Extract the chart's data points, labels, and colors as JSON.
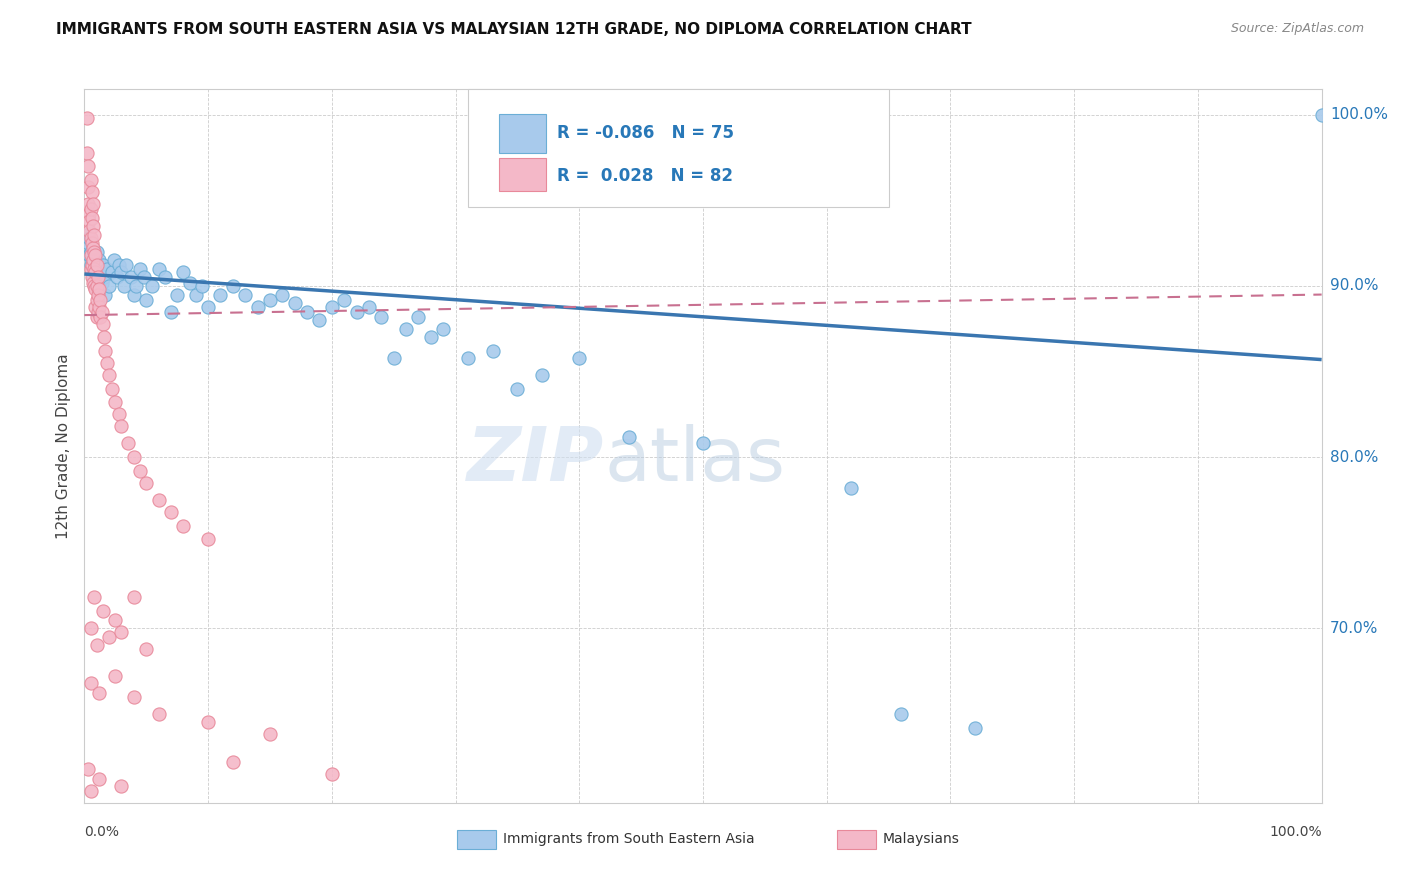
{
  "title": "IMMIGRANTS FROM SOUTH EASTERN ASIA VS MALAYSIAN 12TH GRADE, NO DIPLOMA CORRELATION CHART",
  "source": "Source: ZipAtlas.com",
  "ylabel": "12th Grade, No Diploma",
  "legend_label1": "Immigrants from South Eastern Asia",
  "legend_label2": "Malaysians",
  "r1": "-0.086",
  "n1": "75",
  "r2": "0.028",
  "n2": "82",
  "watermark_zip": "ZIP",
  "watermark_atlas": "atlas",
  "blue_color": "#a8caec",
  "blue_edge": "#6baed6",
  "pink_color": "#f4b8c8",
  "pink_edge": "#e8899a",
  "blue_line_color": "#3a76b0",
  "pink_line_color": "#c87090",
  "blue_scatter": [
    [
      0.002,
      0.93
    ],
    [
      0.003,
      0.925
    ],
    [
      0.004,
      0.928
    ],
    [
      0.004,
      0.918
    ],
    [
      0.005,
      0.92
    ],
    [
      0.005,
      0.912
    ],
    [
      0.006,
      0.915
    ],
    [
      0.007,
      0.91
    ],
    [
      0.007,
      0.905
    ],
    [
      0.008,
      0.918
    ],
    [
      0.008,
      0.908
    ],
    [
      0.009,
      0.912
    ],
    [
      0.01,
      0.92
    ],
    [
      0.01,
      0.905
    ],
    [
      0.011,
      0.91
    ],
    [
      0.012,
      0.915
    ],
    [
      0.013,
      0.908
    ],
    [
      0.014,
      0.902
    ],
    [
      0.015,
      0.912
    ],
    [
      0.016,
      0.905
    ],
    [
      0.017,
      0.895
    ],
    [
      0.018,
      0.91
    ],
    [
      0.02,
      0.9
    ],
    [
      0.022,
      0.908
    ],
    [
      0.024,
      0.915
    ],
    [
      0.026,
      0.905
    ],
    [
      0.028,
      0.912
    ],
    [
      0.03,
      0.908
    ],
    [
      0.032,
      0.9
    ],
    [
      0.034,
      0.912
    ],
    [
      0.038,
      0.905
    ],
    [
      0.04,
      0.895
    ],
    [
      0.042,
      0.9
    ],
    [
      0.045,
      0.91
    ],
    [
      0.048,
      0.905
    ],
    [
      0.05,
      0.892
    ],
    [
      0.055,
      0.9
    ],
    [
      0.06,
      0.91
    ],
    [
      0.065,
      0.905
    ],
    [
      0.07,
      0.885
    ],
    [
      0.075,
      0.895
    ],
    [
      0.08,
      0.908
    ],
    [
      0.085,
      0.902
    ],
    [
      0.09,
      0.895
    ],
    [
      0.095,
      0.9
    ],
    [
      0.1,
      0.888
    ],
    [
      0.11,
      0.895
    ],
    [
      0.12,
      0.9
    ],
    [
      0.13,
      0.895
    ],
    [
      0.14,
      0.888
    ],
    [
      0.15,
      0.892
    ],
    [
      0.16,
      0.895
    ],
    [
      0.17,
      0.89
    ],
    [
      0.18,
      0.885
    ],
    [
      0.19,
      0.88
    ],
    [
      0.2,
      0.888
    ],
    [
      0.21,
      0.892
    ],
    [
      0.22,
      0.885
    ],
    [
      0.23,
      0.888
    ],
    [
      0.24,
      0.882
    ],
    [
      0.25,
      0.858
    ],
    [
      0.26,
      0.875
    ],
    [
      0.27,
      0.882
    ],
    [
      0.28,
      0.87
    ],
    [
      0.29,
      0.875
    ],
    [
      0.31,
      0.858
    ],
    [
      0.33,
      0.862
    ],
    [
      0.35,
      0.84
    ],
    [
      0.37,
      0.848
    ],
    [
      0.4,
      0.858
    ],
    [
      0.44,
      0.812
    ],
    [
      0.5,
      0.808
    ],
    [
      0.62,
      0.782
    ],
    [
      0.66,
      0.65
    ],
    [
      0.72,
      0.642
    ],
    [
      1.0,
      1.0
    ]
  ],
  "pink_scatter": [
    [
      0.002,
      0.998
    ],
    [
      0.002,
      0.978
    ],
    [
      0.003,
      0.97
    ],
    [
      0.003,
      0.958
    ],
    [
      0.003,
      0.948
    ],
    [
      0.004,
      0.942
    ],
    [
      0.004,
      0.938
    ],
    [
      0.004,
      0.932
    ],
    [
      0.005,
      0.962
    ],
    [
      0.005,
      0.945
    ],
    [
      0.005,
      0.928
    ],
    [
      0.005,
      0.918
    ],
    [
      0.005,
      0.91
    ],
    [
      0.006,
      0.955
    ],
    [
      0.006,
      0.94
    ],
    [
      0.006,
      0.925
    ],
    [
      0.006,
      0.912
    ],
    [
      0.006,
      0.905
    ],
    [
      0.007,
      0.948
    ],
    [
      0.007,
      0.935
    ],
    [
      0.007,
      0.922
    ],
    [
      0.007,
      0.915
    ],
    [
      0.007,
      0.902
    ],
    [
      0.008,
      0.93
    ],
    [
      0.008,
      0.92
    ],
    [
      0.008,
      0.91
    ],
    [
      0.008,
      0.9
    ],
    [
      0.009,
      0.918
    ],
    [
      0.009,
      0.908
    ],
    [
      0.009,
      0.898
    ],
    [
      0.009,
      0.888
    ],
    [
      0.01,
      0.912
    ],
    [
      0.01,
      0.9
    ],
    [
      0.01,
      0.892
    ],
    [
      0.01,
      0.882
    ],
    [
      0.011,
      0.905
    ],
    [
      0.011,
      0.895
    ],
    [
      0.011,
      0.885
    ],
    [
      0.012,
      0.898
    ],
    [
      0.012,
      0.888
    ],
    [
      0.013,
      0.892
    ],
    [
      0.013,
      0.882
    ],
    [
      0.014,
      0.885
    ],
    [
      0.015,
      0.878
    ],
    [
      0.016,
      0.87
    ],
    [
      0.017,
      0.862
    ],
    [
      0.018,
      0.855
    ],
    [
      0.02,
      0.848
    ],
    [
      0.022,
      0.84
    ],
    [
      0.025,
      0.832
    ],
    [
      0.028,
      0.825
    ],
    [
      0.03,
      0.818
    ],
    [
      0.035,
      0.808
    ],
    [
      0.04,
      0.8
    ],
    [
      0.045,
      0.792
    ],
    [
      0.05,
      0.785
    ],
    [
      0.06,
      0.775
    ],
    [
      0.07,
      0.768
    ],
    [
      0.08,
      0.76
    ],
    [
      0.1,
      0.752
    ],
    [
      0.005,
      0.7
    ],
    [
      0.008,
      0.718
    ],
    [
      0.01,
      0.69
    ],
    [
      0.015,
      0.71
    ],
    [
      0.02,
      0.695
    ],
    [
      0.025,
      0.705
    ],
    [
      0.03,
      0.698
    ],
    [
      0.04,
      0.718
    ],
    [
      0.05,
      0.688
    ],
    [
      0.005,
      0.668
    ],
    [
      0.012,
      0.662
    ],
    [
      0.025,
      0.672
    ],
    [
      0.04,
      0.66
    ],
    [
      0.06,
      0.65
    ],
    [
      0.1,
      0.645
    ],
    [
      0.15,
      0.638
    ],
    [
      0.003,
      0.618
    ],
    [
      0.12,
      0.622
    ],
    [
      0.2,
      0.615
    ],
    [
      0.005,
      0.605
    ],
    [
      0.012,
      0.612
    ],
    [
      0.03,
      0.608
    ]
  ],
  "xlim": [
    0.0,
    1.0
  ],
  "ylim": [
    0.598,
    1.015
  ],
  "yticks": [
    1.0,
    0.9,
    0.8,
    0.7
  ],
  "blue_trend": [
    0.0,
    0.907,
    1.0,
    0.857
  ],
  "pink_trend": [
    0.0,
    0.883,
    1.0,
    0.895
  ],
  "background_color": "#ffffff"
}
